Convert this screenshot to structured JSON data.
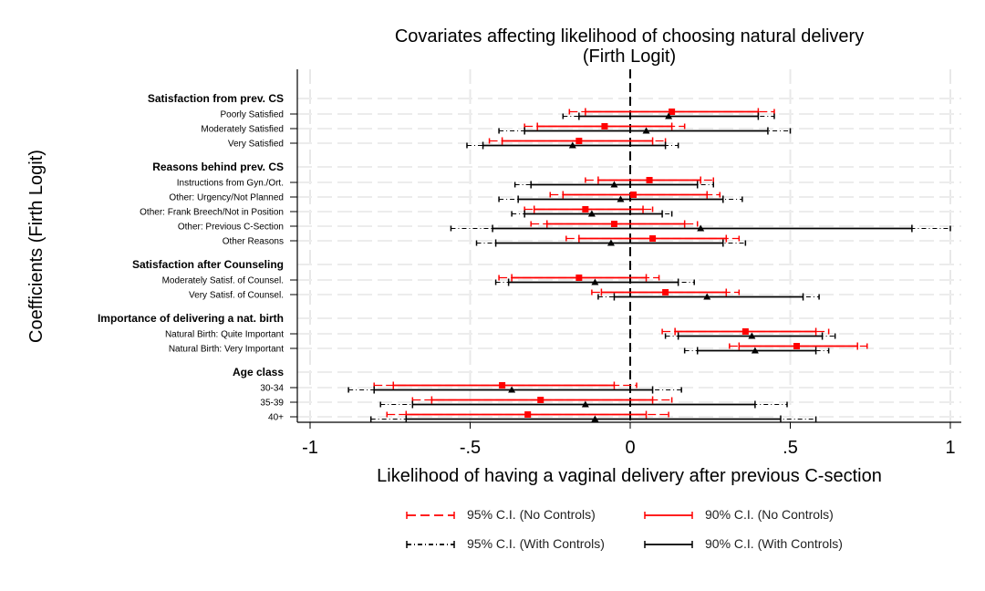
{
  "chart_data": {
    "type": "coefficient-plot",
    "title": "Covariates affecting likelihood of choosing natural delivery",
    "subtitle": "(Firth Logit)",
    "xlabel": "Likelihood of having a vaginal delivery after previous C-section",
    "ylabel": "Coefficients (Firth Logit)",
    "xlim": [
      -1.05,
      1.05
    ],
    "xticks": [
      {
        "value": -1,
        "label": "-1"
      },
      {
        "value": -0.5,
        "label": "-.5"
      },
      {
        "value": 0,
        "label": "0"
      },
      {
        "value": 0.5,
        "label": ".5"
      },
      {
        "value": 1,
        "label": "1"
      }
    ],
    "reference_line": 0,
    "groups": [
      {
        "label": "Satisfaction from prev. CS",
        "rows": [
          {
            "label": "Poorly Satisfied",
            "nc": {
              "est": 0.13,
              "ci90": [
                -0.14,
                0.4
              ],
              "ci95": [
                -0.19,
                0.45
              ]
            },
            "wc": {
              "est": 0.12,
              "ci90": [
                -0.16,
                0.4
              ],
              "ci95": [
                -0.21,
                0.45
              ]
            }
          },
          {
            "label": "Moderately Satisfied",
            "nc": {
              "est": -0.08,
              "ci90": [
                -0.29,
                0.13
              ],
              "ci95": [
                -0.33,
                0.17
              ]
            },
            "wc": {
              "est": 0.05,
              "ci90": [
                -0.33,
                0.43
              ],
              "ci95": [
                -0.41,
                0.5
              ]
            }
          },
          {
            "label": "Very Satisfied",
            "nc": {
              "est": -0.16,
              "ci90": [
                -0.4,
                0.07
              ],
              "ci95": [
                -0.44,
                0.11
              ]
            },
            "wc": {
              "est": -0.18,
              "ci90": [
                -0.46,
                0.11
              ],
              "ci95": [
                -0.51,
                0.15
              ]
            }
          }
        ]
      },
      {
        "label": "Reasons behind prev. CS",
        "rows": [
          {
            "label": "Instructions from Gyn./Ort.",
            "nc": {
              "est": 0.06,
              "ci90": [
                -0.1,
                0.22
              ],
              "ci95": [
                -0.14,
                0.26
              ]
            },
            "wc": {
              "est": -0.05,
              "ci90": [
                -0.31,
                0.21
              ],
              "ci95": [
                -0.36,
                0.26
              ]
            }
          },
          {
            "label": "Other: Urgency/Not Planned",
            "nc": {
              "est": 0.01,
              "ci90": [
                -0.21,
                0.24
              ],
              "ci95": [
                -0.25,
                0.28
              ]
            },
            "wc": {
              "est": -0.03,
              "ci90": [
                -0.35,
                0.29
              ],
              "ci95": [
                -0.41,
                0.35
              ]
            }
          },
          {
            "label": "Other: Frank Breech/Not in Position",
            "nc": {
              "est": -0.14,
              "ci90": [
                -0.3,
                0.04
              ],
              "ci95": [
                -0.33,
                0.07
              ]
            },
            "wc": {
              "est": -0.12,
              "ci90": [
                -0.33,
                0.1
              ],
              "ci95": [
                -0.37,
                0.13
              ]
            }
          },
          {
            "label": "Other: Previous C-Section",
            "nc": {
              "est": -0.05,
              "ci90": [
                -0.26,
                0.17
              ],
              "ci95": [
                -0.31,
                0.21
              ]
            },
            "wc": {
              "est": 0.22,
              "ci90": [
                -0.43,
                0.88
              ],
              "ci95": [
                -0.56,
                1.0
              ]
            }
          },
          {
            "label": "Other Reasons",
            "nc": {
              "est": 0.07,
              "ci90": [
                -0.16,
                0.3
              ],
              "ci95": [
                -0.2,
                0.34
              ]
            },
            "wc": {
              "est": -0.06,
              "ci90": [
                -0.42,
                0.29
              ],
              "ci95": [
                -0.48,
                0.36
              ]
            }
          }
        ]
      },
      {
        "label": "Satisfaction after Counseling",
        "rows": [
          {
            "label": "Moderately Satisf. of Counsel.",
            "nc": {
              "est": -0.16,
              "ci90": [
                -0.37,
                0.05
              ],
              "ci95": [
                -0.41,
                0.09
              ]
            },
            "wc": {
              "est": -0.11,
              "ci90": [
                -0.38,
                0.15
              ],
              "ci95": [
                -0.42,
                0.2
              ]
            }
          },
          {
            "label": "Very Satisf. of Counsel.",
            "nc": {
              "est": 0.11,
              "ci90": [
                -0.09,
                0.3
              ],
              "ci95": [
                -0.12,
                0.34
              ]
            },
            "wc": {
              "est": 0.24,
              "ci90": [
                -0.05,
                0.54
              ],
              "ci95": [
                -0.1,
                0.59
              ]
            }
          }
        ]
      },
      {
        "label": "Importance of delivering a nat. birth",
        "rows": [
          {
            "label": "Natural Birth: Quite Important",
            "nc": {
              "est": 0.36,
              "ci90": [
                0.14,
                0.58
              ],
              "ci95": [
                0.1,
                0.62
              ]
            },
            "wc": {
              "est": 0.38,
              "ci90": [
                0.15,
                0.6
              ],
              "ci95": [
                0.11,
                0.64
              ]
            }
          },
          {
            "label": "Natural Birth: Very Important",
            "nc": {
              "est": 0.52,
              "ci90": [
                0.34,
                0.71
              ],
              "ci95": [
                0.31,
                0.74
              ]
            },
            "wc": {
              "est": 0.39,
              "ci90": [
                0.21,
                0.58
              ],
              "ci95": [
                0.17,
                0.62
              ]
            }
          }
        ]
      },
      {
        "label": "Age class",
        "rows": [
          {
            "label": "30-34",
            "nc": {
              "est": -0.4,
              "ci90": [
                -0.74,
                -0.05
              ],
              "ci95": [
                -0.8,
                0.02
              ]
            },
            "wc": {
              "est": -0.37,
              "ci90": [
                -0.8,
                0.07
              ],
              "ci95": [
                -0.88,
                0.16
              ]
            }
          },
          {
            "label": "35-39",
            "nc": {
              "est": -0.28,
              "ci90": [
                -0.62,
                0.07
              ],
              "ci95": [
                -0.68,
                0.13
              ]
            },
            "wc": {
              "est": -0.14,
              "ci90": [
                -0.68,
                0.39
              ],
              "ci95": [
                -0.78,
                0.49
              ]
            }
          },
          {
            "label": "40+",
            "nc": {
              "est": -0.32,
              "ci90": [
                -0.7,
                0.05
              ],
              "ci95": [
                -0.76,
                0.12
              ]
            },
            "wc": {
              "est": -0.11,
              "ci90": [
                -0.7,
                0.47
              ],
              "ci95": [
                -0.81,
                0.58
              ]
            }
          }
        ]
      }
    ],
    "series": [
      {
        "key": "nc",
        "name": "No Controls",
        "color": "#ff0000",
        "marker": "square"
      },
      {
        "key": "wc",
        "name": "With Controls",
        "color": "#000000",
        "marker": "triangle"
      }
    ],
    "legend": [
      {
        "key": "nc95",
        "label": "95% C.I. (No Controls)",
        "color": "#ff0000",
        "style": "dash"
      },
      {
        "key": "nc90",
        "label": "90% C.I. (No Controls)",
        "color": "#ff0000",
        "style": "solid"
      },
      {
        "key": "wc95",
        "label": "95% C.I. (With Controls)",
        "color": "#000000",
        "style": "dashdot"
      },
      {
        "key": "wc90",
        "label": "90% C.I. (With Controls)",
        "color": "#000000",
        "style": "solid"
      }
    ]
  }
}
